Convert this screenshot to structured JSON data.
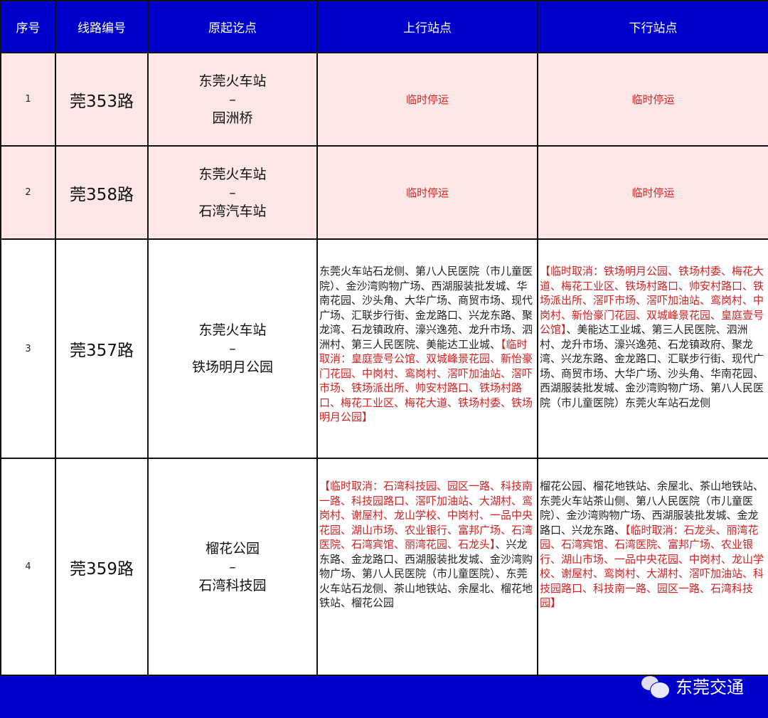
{
  "header": {
    "seq": "序号",
    "line": "线路编号",
    "od": "原起讫点",
    "up": "上行站点",
    "down": "下行站点"
  },
  "colors": {
    "header_bg": "#0000cc",
    "suspended_row_bg": "#fde6e6",
    "cancel_text": "#d42020"
  },
  "rows": [
    {
      "seq": "1",
      "line": "莞353路",
      "origin": "东莞火车站",
      "dash": "–",
      "dest": "园洲桥",
      "up_status": "临时停运",
      "down_status": "临时停运"
    },
    {
      "seq": "2",
      "line": "莞358路",
      "origin": "东莞火车站",
      "dash": "–",
      "dest": "石湾汽车站",
      "up_status": "临时停运",
      "down_status": "临时停运"
    },
    {
      "seq": "3",
      "line": "莞357路",
      "origin": "东莞火车站",
      "dash": "–",
      "dest": "铁场明月公园",
      "up": [
        {
          "t": "东莞火车站石龙侧、第八人民医院（市儿童医院）、金沙湾购物广场、西湖服装批发城、华南花园、沙头角、大华广场、商贸市场、现代广场、汇联步行街、金龙路口、兴龙东路、聚龙湾、石龙镇政府、濠兴逸苑、龙升市场、泗洲村、第三人民医院、美能达工业城、",
          "red": false
        },
        {
          "t": "【临时取消：皇庭壹号公馆、双城峰景花园、新怡豪门花园、中岗村、鸾岗村、滘吓加油站、滘吓市场、铁场派出所、帅安村路口、铁场村路口、梅花工业区、梅花大道、铁场村委、铁场明月公园】",
          "red": true
        }
      ],
      "down": [
        {
          "t": "【临时取消：铁场明月公园、铁场村委、梅花大道、梅花工业区、铁场村路口、帅安村路口、铁场派出所、滘吓市场、滘吓加油站、鸾岗村、中岗村、新怡豪门花园、双城峰景花园、皇庭壹号公馆】",
          "red": true
        },
        {
          "t": "、美能达工业城、第三人民医院、泗洲村、龙升市场、濠兴逸苑、石龙镇政府、聚龙湾、兴龙东路、金龙路口、汇联步行街、现代广场、商贸市场、大华广场、沙头角、华南花园、西湖服装批发城、金沙湾购物广场、第八人民医院（市儿童医院）东莞火车站石龙侧",
          "red": false
        }
      ]
    },
    {
      "seq": "4",
      "line": "莞359路",
      "origin": "榴花公园",
      "dash": "–",
      "dest": "石湾科技园",
      "up": [
        {
          "t": "【临时取消：石湾科技园、园区一路、科技南一路、科技园路口、滘吓加油站、大湖村、鸾岗村、谢屋村、龙山学校、中岗村、一品中央花园、湖山市场、农业银行、富邦广场、石湾医院、石湾宾馆、丽湾花园、石龙头】",
          "red": true
        },
        {
          "t": "、兴龙东路、金龙路口、西湖服装批发城、金沙湾购物广场、第八人民医院（市儿童医院）、东莞火车站石龙侧、茶山地铁站、余屋北、榴花地铁站、榴花公园",
          "red": false
        }
      ],
      "down": [
        {
          "t": "榴花公园、榴花地铁站、余屋北、茶山地铁站、东莞火车站茶山侧、第八人民医院（市儿童医院）、金沙湾购物广场、西湖服装批发城、金龙路口、兴龙东路、",
          "red": false
        },
        {
          "t": "【临时取消：石龙头、丽湾花园、石湾宾馆、石湾医院、富邦广场、农业银行、湖山市场、一品中央花园、中岗村、龙山学校、谢屋村、鸾岗村、大湖村、滘吓加油站、科技园路口、科技南一路、园区一路、石湾科技园】",
          "red": true
        }
      ]
    }
  ],
  "watermark": {
    "text": "东莞交通",
    "icon": "wechat-icon"
  }
}
